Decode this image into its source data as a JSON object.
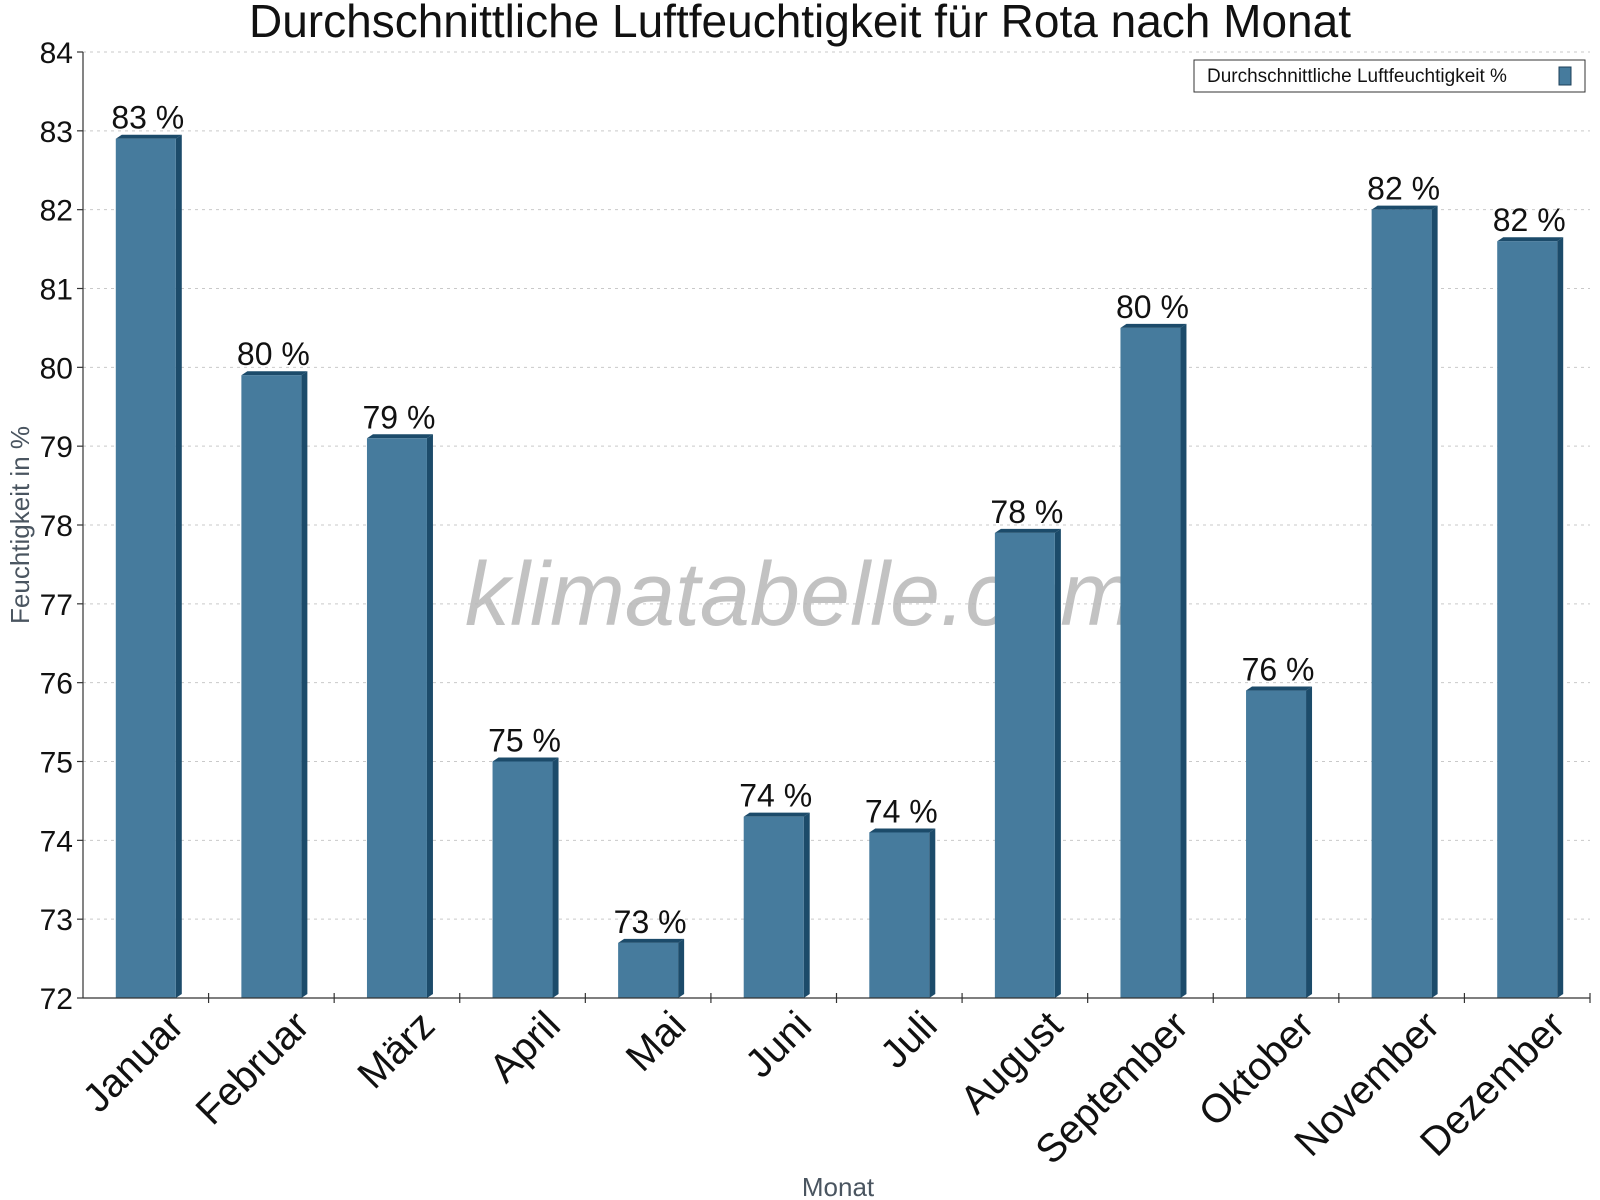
{
  "chart_data": {
    "type": "bar",
    "title": "Durchschnittliche Luftfeuchtigkeit für Rota nach Monat",
    "xlabel": "Monat",
    "ylabel": "Feuchtigkeit in %",
    "categories": [
      "Januar",
      "Februar",
      "März",
      "April",
      "Mai",
      "Juni",
      "Juli",
      "August",
      "September",
      "Oktober",
      "November",
      "Dezember"
    ],
    "series": [
      {
        "name": "Durchschnittliche Luftfeuchtigkeit %",
        "values": [
          82.9,
          79.9,
          79.1,
          75.0,
          72.7,
          74.3,
          74.1,
          77.9,
          80.5,
          75.9,
          82.0,
          81.6
        ],
        "labels": [
          "83 %",
          "80 %",
          "79 %",
          "75 %",
          "73 %",
          "74 %",
          "74 %",
          "78 %",
          "80 %",
          "76 %",
          "82 %",
          "82 %"
        ],
        "color": "#467b9d"
      }
    ],
    "ylim": [
      72,
      84
    ],
    "yticks": [
      72,
      73,
      74,
      75,
      76,
      77,
      78,
      79,
      80,
      81,
      82,
      83,
      84
    ],
    "grid": true,
    "legend_position": "top-right",
    "watermark": "klimatabelle.com"
  }
}
